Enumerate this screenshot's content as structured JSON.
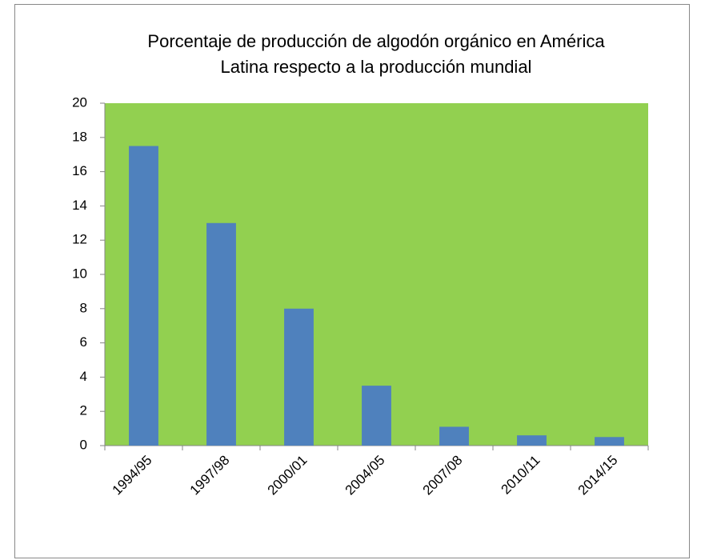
{
  "chart_data": {
    "type": "bar",
    "title": "Porcentaje de producción de algodón orgánico en América Latina respecto a la producción mundial",
    "categories": [
      "1994/95",
      "1997/98",
      "2000/01",
      "2004/05",
      "2007/08",
      "2010/11",
      "2014/15"
    ],
    "values": [
      17.5,
      13,
      8,
      3.5,
      1.1,
      0.6,
      0.5
    ],
    "color": "#4f81bd",
    "plot_background": "#92d050",
    "ylim": [
      0,
      20
    ],
    "yticks": [
      0,
      2,
      4,
      6,
      8,
      10,
      12,
      14,
      16,
      18,
      20
    ],
    "grid": false
  }
}
